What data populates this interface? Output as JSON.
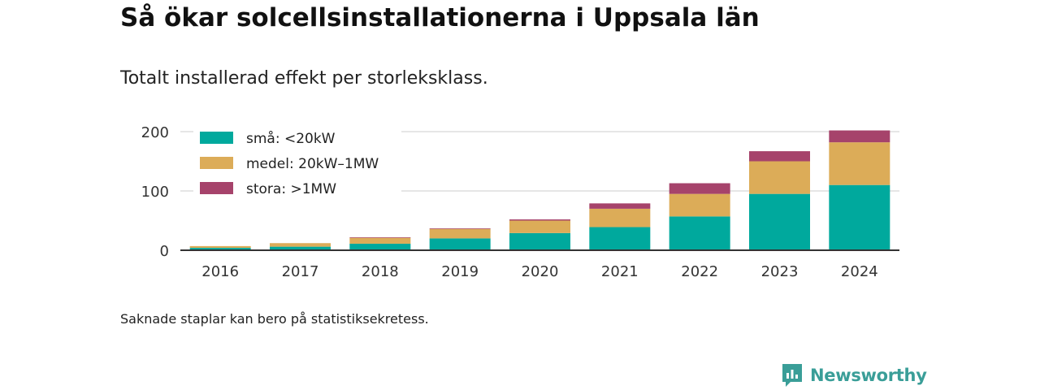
{
  "header": {
    "title": "Så ökar solcellsinstallationerna i Uppsala län",
    "subtitle": "Totalt installerad effekt per storleksklass."
  },
  "footnote": "Saknade staplar kan bero på statistiksekretess.",
  "brand": {
    "name": "Newsworthy",
    "icon": "newsworthy-logo-icon"
  },
  "colors": {
    "small": "#00a99d",
    "medium": "#dcac58",
    "large": "#a6436b",
    "grid": "#dddddd",
    "axis": "#333333"
  },
  "chart_data": {
    "type": "bar",
    "stacked": true,
    "categories": [
      "2016",
      "2017",
      "2018",
      "2019",
      "2020",
      "2021",
      "2022",
      "2023",
      "2024"
    ],
    "series": [
      {
        "name": "små: <20kW",
        "color": "#00a99d",
        "values": [
          4,
          6,
          11,
          20,
          29,
          39,
          57,
          95,
          110
        ]
      },
      {
        "name": "medel: 20kW–1MW",
        "color": "#dcac58",
        "values": [
          3,
          6,
          10,
          16,
          21,
          31,
          38,
          55,
          72
        ]
      },
      {
        "name": "stora: >1MW",
        "color": "#a6436b",
        "values": [
          0,
          0,
          1,
          1,
          2,
          9,
          18,
          17,
          20
        ]
      }
    ],
    "ylim": [
      0,
      200
    ],
    "yticks": [
      0,
      100,
      200
    ],
    "grid": true,
    "legend": "top-left"
  }
}
